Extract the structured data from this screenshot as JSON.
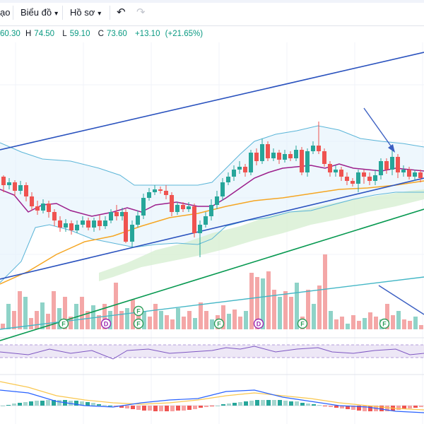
{
  "toolbar": {
    "left_fragment": "ạo",
    "chart_menu": "Biểu đồ",
    "profile_menu": "Hồ sơ",
    "undo_icon": "undo-icon",
    "redo_icon": "redo-icon"
  },
  "ohlc": {
    "open": "60.30",
    "high_label": "H",
    "high": "74.50",
    "low_label": "L",
    "low": "59.10",
    "close_label": "C",
    "close": "73.60",
    "change": "+13.10",
    "change_pct": "(+21.65%)"
  },
  "colors": {
    "up": "#26a69a",
    "down": "#ef5350",
    "up_volume": "#8fd3c8",
    "down_volume": "#f4a7a7",
    "bollinger": "#5bb5d8",
    "bollinger_fill": "#e3f2fb",
    "trend_blue": "#2a52be",
    "trend_green": "#089951",
    "ma_purple": "#9c1f8c",
    "ma_orange": "#f5a623",
    "cloud": "#d7efd2",
    "rsi_line": "#7e57c2",
    "rsi_fill": "#ede7f6",
    "macd_line": "#2962ff",
    "signal_line": "#f9c74f"
  },
  "event_markers": [
    {
      "label": "F"
    },
    {
      "label": "D"
    },
    {
      "label": "F"
    },
    {
      "label": "F"
    },
    {
      "label": "F"
    },
    {
      "label": "D"
    },
    {
      "label": "F"
    },
    {
      "label": "F"
    }
  ]
}
